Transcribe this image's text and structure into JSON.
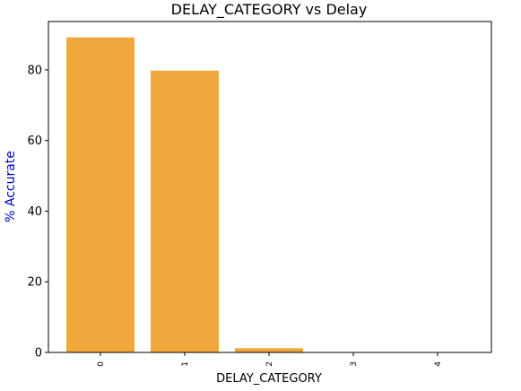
{
  "chart_data": {
    "type": "bar",
    "title": "DELAY_CATEGORY vs Delay",
    "xlabel": "DELAY_CATEGORY",
    "ylabel": "% Accurate",
    "categories": [
      "0",
      "1",
      "2",
      "3",
      "4"
    ],
    "values": [
      89.2,
      79.8,
      1.2,
      0.0,
      0.0
    ],
    "ylim": [
      0,
      93.7
    ],
    "yticks": [
      0,
      20,
      40,
      60,
      80
    ],
    "bar_color": "#f0a83c",
    "ylabel_color": "#0000cc",
    "grid": false,
    "legend": "none"
  }
}
